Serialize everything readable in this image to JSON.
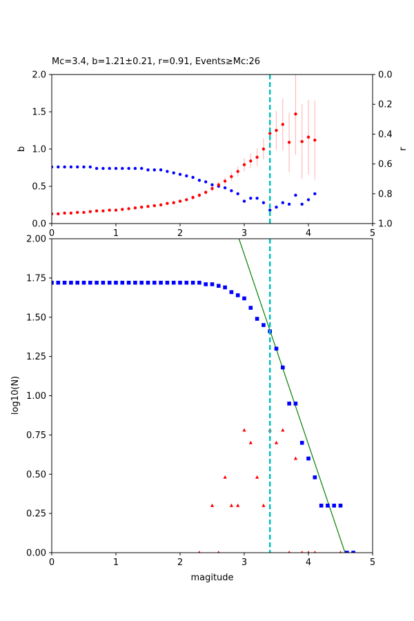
{
  "chart_data": [
    {
      "type": "scatter",
      "title": "Mc=3.4, b=1.21±0.21, r=0.91, Events≥Mc:26",
      "xlabel": "",
      "ylabel": "b",
      "y2label": "r",
      "xlim": [
        0,
        5
      ],
      "ylim": [
        0,
        2
      ],
      "y2lim": [
        1,
        0
      ],
      "xticks": [
        "0",
        "1",
        "2",
        "3",
        "4",
        "5"
      ],
      "yticks": [
        "0.0",
        "0.5",
        "1.0",
        "1.5",
        "2.0"
      ],
      "y2ticks": [
        "1.0",
        "0.8",
        "0.6",
        "0.4",
        "0.2",
        "0.0"
      ],
      "mc_line": 3.4,
      "grid": false,
      "colors": {
        "b": "#ff0000",
        "r": "#0000ff",
        "err": "#ffbbbb",
        "mc": "#00bfbf"
      },
      "b_series": {
        "x": [
          0,
          0.1,
          0.2,
          0.3,
          0.4,
          0.5,
          0.6,
          0.7,
          0.8,
          0.9,
          1.0,
          1.1,
          1.2,
          1.3,
          1.4,
          1.5,
          1.6,
          1.7,
          1.8,
          1.9,
          2.0,
          2.1,
          2.2,
          2.3,
          2.4,
          2.5,
          2.6,
          2.7,
          2.8,
          2.9,
          3.0,
          3.1,
          3.2,
          3.3,
          3.4,
          3.5,
          3.6,
          3.7,
          3.8,
          3.9,
          4.0,
          4.1
        ],
        "y": [
          0.13,
          0.13,
          0.14,
          0.14,
          0.15,
          0.15,
          0.16,
          0.17,
          0.17,
          0.18,
          0.18,
          0.19,
          0.2,
          0.21,
          0.22,
          0.23,
          0.24,
          0.25,
          0.27,
          0.28,
          0.3,
          0.32,
          0.35,
          0.38,
          0.42,
          0.47,
          0.52,
          0.57,
          0.63,
          0.7,
          0.79,
          0.84,
          0.89,
          1.0,
          1.21,
          1.25,
          1.33,
          1.09,
          1.47,
          1.1,
          1.16,
          1.12
        ],
        "err": [
          0.01,
          0.01,
          0.01,
          0.01,
          0.01,
          0.01,
          0.01,
          0.01,
          0.01,
          0.01,
          0.01,
          0.01,
          0.01,
          0.01,
          0.01,
          0.01,
          0.01,
          0.02,
          0.02,
          0.02,
          0.02,
          0.02,
          0.03,
          0.03,
          0.03,
          0.04,
          0.04,
          0.05,
          0.06,
          0.07,
          0.09,
          0.1,
          0.12,
          0.14,
          0.21,
          0.26,
          0.35,
          0.4,
          0.55,
          0.5,
          0.5,
          0.53
        ]
      },
      "r_series": {
        "x": [
          0,
          0.1,
          0.2,
          0.3,
          0.4,
          0.5,
          0.6,
          0.7,
          0.8,
          0.9,
          1.0,
          1.1,
          1.2,
          1.3,
          1.4,
          1.5,
          1.6,
          1.7,
          1.8,
          1.9,
          2.0,
          2.1,
          2.2,
          2.3,
          2.4,
          2.5,
          2.6,
          2.7,
          2.8,
          2.9,
          3.0,
          3.1,
          3.2,
          3.3,
          3.4,
          3.5,
          3.6,
          3.7,
          3.8,
          3.9,
          4.0,
          4.1
        ],
        "y": [
          0.62,
          0.62,
          0.62,
          0.62,
          0.62,
          0.62,
          0.62,
          0.63,
          0.63,
          0.63,
          0.63,
          0.63,
          0.63,
          0.63,
          0.63,
          0.64,
          0.64,
          0.64,
          0.65,
          0.66,
          0.67,
          0.68,
          0.69,
          0.71,
          0.72,
          0.74,
          0.75,
          0.76,
          0.78,
          0.8,
          0.85,
          0.83,
          0.83,
          0.86,
          0.91,
          0.89,
          0.86,
          0.87,
          0.81,
          0.87,
          0.84,
          0.8
        ]
      }
    },
    {
      "type": "scatter",
      "title": "",
      "xlabel": "magitude",
      "ylabel": "log10(N)",
      "xlim": [
        0,
        5
      ],
      "ylim": [
        0,
        2
      ],
      "xticks": [
        "0",
        "1",
        "2",
        "3",
        "4",
        "5"
      ],
      "yticks": [
        "0.00",
        "0.25",
        "0.50",
        "0.75",
        "1.00",
        "1.25",
        "1.50",
        "1.75",
        "2.00"
      ],
      "mc_line": 3.4,
      "grid": false,
      "colors": {
        "cumulative": "#0000ff",
        "noncumulative": "#ff0000",
        "fit": "#008000",
        "mc": "#00bfbf"
      },
      "fit_line": {
        "a": 5.53,
        "b": 1.21
      },
      "cumulative": {
        "x": [
          0,
          0.1,
          0.2,
          0.3,
          0.4,
          0.5,
          0.6,
          0.7,
          0.8,
          0.9,
          1.0,
          1.1,
          1.2,
          1.3,
          1.4,
          1.5,
          1.6,
          1.7,
          1.8,
          1.9,
          2.0,
          2.1,
          2.2,
          2.3,
          2.4,
          2.5,
          2.6,
          2.7,
          2.8,
          2.9,
          3.0,
          3.1,
          3.2,
          3.3,
          3.4,
          3.5,
          3.6,
          3.7,
          3.8,
          3.9,
          4.0,
          4.1,
          4.2,
          4.3,
          4.4,
          4.5,
          4.6,
          4.7
        ],
        "y": [
          1.72,
          1.72,
          1.72,
          1.72,
          1.72,
          1.72,
          1.72,
          1.72,
          1.72,
          1.72,
          1.72,
          1.72,
          1.72,
          1.72,
          1.72,
          1.72,
          1.72,
          1.72,
          1.72,
          1.72,
          1.72,
          1.72,
          1.72,
          1.72,
          1.71,
          1.71,
          1.7,
          1.69,
          1.66,
          1.64,
          1.62,
          1.56,
          1.49,
          1.45,
          1.41,
          1.3,
          1.18,
          0.95,
          0.95,
          0.7,
          0.6,
          0.48,
          0.3,
          0.3,
          0.3,
          0.3,
          0,
          0
        ]
      },
      "noncumulative": {
        "x": [
          2.3,
          2.5,
          2.6,
          2.7,
          2.8,
          2.9,
          3.0,
          3.1,
          3.2,
          3.3,
          3.4,
          3.5,
          3.6,
          3.7,
          3.8,
          3.9,
          4.0,
          4.1,
          4.5
        ],
        "y": [
          0,
          0.3,
          0,
          0.48,
          0.3,
          0.3,
          0.78,
          0.7,
          0.48,
          0.3,
          0.78,
          0.7,
          0.78,
          0,
          0.6,
          0,
          0,
          0,
          0
        ]
      }
    }
  ]
}
